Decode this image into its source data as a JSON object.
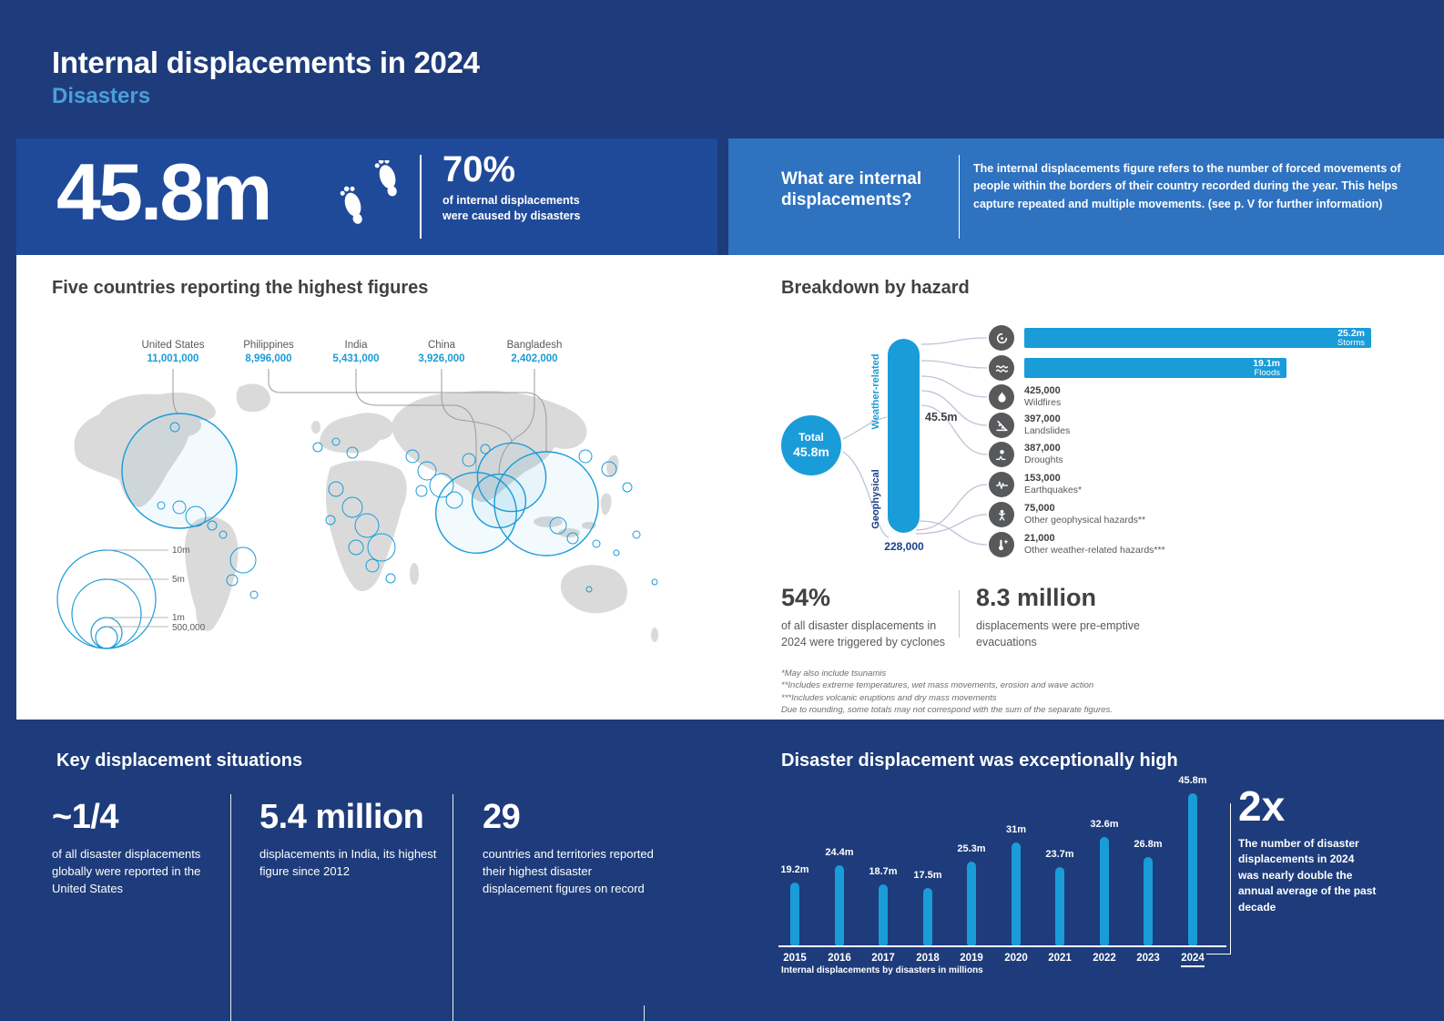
{
  "page": {
    "title": "Internal displacements in 2024",
    "subtitle": "Disasters"
  },
  "headline": {
    "total": "45.8m",
    "pct": "70%",
    "pct_caption": "of internal displacements were caused by disasters"
  },
  "definition": {
    "question": "What are internal displacements?",
    "answer": "The internal displacements figure refers to the number of forced movements of people within the borders of their country recorded during the year. This helps capture repeated and multiple movements. (see p. V for further information)"
  },
  "map": {
    "title": "Five countries reporting the highest figures",
    "countries": [
      {
        "name": "United States",
        "value": "11,001,000"
      },
      {
        "name": "Philippines",
        "value": "8,996,000"
      },
      {
        "name": "India",
        "value": "5,431,000"
      },
      {
        "name": "China",
        "value": "3,926,000"
      },
      {
        "name": "Bangladesh",
        "value": "2,402,000"
      }
    ],
    "legend": [
      "10m",
      "5m",
      "1m",
      "500,000"
    ]
  },
  "hazards": {
    "title": "Breakdown by hazard",
    "total_label": "Total",
    "total_value": "45.8m",
    "weather_label": "Weather-related",
    "weather_value": "45.5m",
    "geo_label": "Geophysical",
    "geo_value": "228,000",
    "items": [
      {
        "value": "25.2m",
        "label": "Storms"
      },
      {
        "value": "19.1m",
        "label": "Floods"
      },
      {
        "value": "425,000",
        "label": "Wildfires"
      },
      {
        "value": "397,000",
        "label": "Landslides"
      },
      {
        "value": "387,000",
        "label": "Droughts"
      },
      {
        "value": "153,000",
        "label": "Earthquakes*"
      },
      {
        "value": "75,000",
        "label": "Other geophysical hazards**"
      },
      {
        "value": "21,000",
        "label": "Other weather-related hazards***"
      }
    ],
    "stat1_value": "54%",
    "stat1_text": "of all disaster displacements in 2024 were triggered by cyclones",
    "stat2_value": "8.3 million",
    "stat2_text": "displacements were pre-emptive evacuations",
    "footnotes": [
      "*May also include tsunamis",
      "**Includes extreme temperatures, wet mass movements, erosion and wave action",
      "***Includes volcanic eruptions and dry mass movements",
      "Due to rounding, some totals may not correspond with the sum of the separate figures."
    ]
  },
  "key_situations": {
    "title": "Key displacement situations",
    "stats": [
      {
        "value": "~1/4",
        "text": "of all disaster displacements globally were reported in the United States"
      },
      {
        "value": "5.4 million",
        "text": "displacements in India, its highest figure since 2012"
      },
      {
        "value": "29",
        "text": "countries and territories reported their highest disaster displacement figures on record"
      }
    ]
  },
  "trend": {
    "title": "Disaster displacement was exceptionally high",
    "years": [
      "2015",
      "2016",
      "2017",
      "2018",
      "2019",
      "2020",
      "2021",
      "2022",
      "2023",
      "2024"
    ],
    "labels": [
      "19.2m",
      "24.4m",
      "18.7m",
      "17.5m",
      "25.3m",
      "31m",
      "23.7m",
      "32.6m",
      "26.8m",
      "45.8m"
    ],
    "highlight_value": "2x",
    "highlight_text": "The number of disaster displacements in 2024 was nearly double the annual average of the past decade",
    "axis_caption": "Internal displacements by disasters in millions"
  },
  "chart_data": [
    {
      "id": "top_countries",
      "type": "scatter",
      "title": "Five countries reporting the highest figures",
      "categories": [
        "United States",
        "Philippines",
        "India",
        "China",
        "Bangladesh"
      ],
      "values": [
        11001000,
        8996000,
        5431000,
        3926000,
        2402000
      ],
      "legend": [
        "10m",
        "5m",
        "1m",
        "500,000"
      ],
      "note": "bubble map, circle area proportional to displacements"
    },
    {
      "id": "hazard_breakdown",
      "type": "bar",
      "title": "Breakdown by hazard",
      "categories": [
        "Storms",
        "Floods",
        "Wildfires",
        "Landslides",
        "Droughts",
        "Earthquakes*",
        "Other geophysical hazards**",
        "Other weather-related hazards***"
      ],
      "values": [
        25200000,
        19100000,
        425000,
        397000,
        387000,
        153000,
        75000,
        21000
      ],
      "groups": {
        "Total": 45800000,
        "Weather-related": 45500000,
        "Geophysical": 228000
      },
      "legend_position": "none"
    },
    {
      "id": "annual_trend",
      "type": "bar",
      "title": "Disaster displacement was exceptionally high",
      "categories": [
        "2015",
        "2016",
        "2017",
        "2018",
        "2019",
        "2020",
        "2021",
        "2022",
        "2023",
        "2024"
      ],
      "values": [
        19.2,
        24.4,
        18.7,
        17.5,
        25.3,
        31,
        23.7,
        32.6,
        26.8,
        45.8
      ],
      "xlabel": "Internal displacements by disasters in millions",
      "ylabel": "",
      "ylim": [
        0,
        50
      ],
      "grid": false
    }
  ],
  "colors": {
    "navy": "#1e3c7b",
    "headline_panel": "#1f4a9a",
    "definition_panel": "#2e72c0",
    "accent_cyan": "#1a9cd8",
    "dark_text": "#414042",
    "gray_text": "#58595b",
    "map_gray": "#dadada",
    "geo_navy": "#1b3f8a"
  }
}
